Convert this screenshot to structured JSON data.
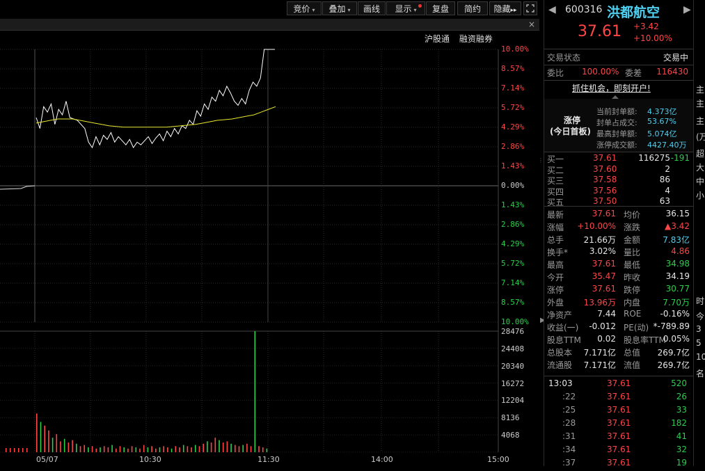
{
  "toolbar": {
    "buttons": [
      "竞价",
      "叠加",
      "画线",
      "显示",
      "复盘",
      "简约",
      "隐藏"
    ],
    "hide_arrows": "▸▸",
    "expand_icon": "expand-icon"
  },
  "subbar": {
    "close": "×"
  },
  "badges": [
    "沪股通",
    "融资融券"
  ],
  "chart_data": {
    "type": "line",
    "date_label": "05/07",
    "x_ticks": [
      "10:30",
      "11:30",
      "14:00",
      "15:00"
    ],
    "pct_ticks": [
      "10.00%",
      "8.57%",
      "7.14%",
      "5.72%",
      "4.29%",
      "2.86%",
      "1.43%",
      "0.00%",
      "1.43%",
      "2.86%",
      "4.29%",
      "5.72%",
      "7.14%",
      "8.57%",
      "10.00%"
    ],
    "volume_ticks": [
      "28476",
      "24408",
      "20340",
      "16272",
      "12204",
      "8136",
      "4068"
    ],
    "prev_close": 34.19,
    "series": [
      {
        "values": [
          5.0,
          4.2,
          5.8,
          5.4,
          6.0,
          4.5,
          5.6,
          5.2,
          6.2,
          5.0,
          4.9,
          4.8,
          4.5,
          4.2,
          3.2,
          2.8,
          3.6,
          3.0,
          3.7,
          3.4,
          3.9,
          3.2,
          3.6,
          3.3,
          3.0,
          3.4,
          2.8,
          3.2,
          3.0,
          3.3,
          3.6,
          3.1,
          3.5,
          3.8,
          3.3,
          4.0,
          3.6,
          4.2,
          3.8,
          4.4,
          4.2,
          4.8,
          4.5,
          5.5,
          5.1,
          6.0,
          5.6,
          6.5,
          6.2,
          7.0,
          6.6,
          7.3,
          6.8,
          6.2,
          5.9,
          6.4,
          6.0,
          7.0,
          7.6,
          7.3,
          7.9,
          10.0,
          10.0
        ]
      },
      {
        "values": [
          4.6,
          4.7,
          4.8,
          4.9,
          4.9,
          4.9,
          4.8,
          4.7,
          4.6,
          4.5,
          4.4,
          4.35,
          4.3,
          4.3,
          4.3,
          4.3,
          4.3,
          4.3,
          4.3,
          4.35,
          4.4,
          4.45,
          4.5,
          4.6,
          4.7,
          4.8,
          4.85,
          4.9,
          5.0,
          5.1,
          5.2,
          5.4,
          5.6,
          5.8
        ]
      }
    ],
    "volumes": [
      0.32,
      0.25,
      0.22,
      0.18,
      0.12,
      0.15,
      0.09,
      0.11,
      0.08,
      0.1,
      0.07,
      0.05,
      0.06,
      0.04,
      0.05,
      0.03,
      0.04,
      0.05,
      0.04,
      0.06,
      0.03,
      0.05,
      0.04,
      0.03,
      0.05,
      0.04,
      0.03,
      0.06,
      0.04,
      0.05,
      0.03,
      0.04,
      0.05,
      0.04,
      0.03,
      0.05,
      0.04,
      0.06,
      0.05,
      0.04,
      0.06,
      0.05,
      0.07,
      0.09,
      0.08,
      0.12,
      0.1,
      0.08,
      0.09,
      0.07,
      0.06,
      0.05,
      0.06,
      0.07,
      0.05,
      1.0,
      0.05,
      0.04,
      0.03
    ]
  },
  "stock": {
    "code": "600316",
    "name": "洪都航空",
    "price": "37.61",
    "change": "+3.42",
    "pct": "+10.00%"
  },
  "status": {
    "label": "交易状态",
    "value": "交易中"
  },
  "weibi": {
    "l1": "委比",
    "v1": "100.00%",
    "l2": "委差",
    "v2": "116430"
  },
  "promo": "抓住机会，即刻开户!",
  "limit": {
    "title1": "涨停",
    "title2": "(今日首板)",
    "rows": [
      [
        "当前封单额:",
        "4.373亿"
      ],
      [
        "封单占成交:",
        "53.67%"
      ],
      [
        "最高封单额:",
        "5.074亿"
      ],
      [
        "涨停成交额:",
        "4427.40万"
      ]
    ]
  },
  "book": [
    [
      "买一",
      "37.61",
      "116275",
      "-191"
    ],
    [
      "买二",
      "37.60",
      "2",
      ""
    ],
    [
      "买三",
      "37.58",
      "86",
      ""
    ],
    [
      "买四",
      "37.56",
      "4",
      ""
    ],
    [
      "买五",
      "37.50",
      "63",
      ""
    ]
  ],
  "stats": [
    [
      "最新",
      "37.61",
      "均价",
      "36.15"
    ],
    [
      "涨幅",
      "+10.00%",
      "涨跌",
      "▲3.42"
    ],
    [
      "总手",
      "21.66万",
      "金额",
      "7.83亿"
    ],
    [
      "换手*",
      "3.02%",
      "量比",
      "4.86"
    ],
    [
      "最高",
      "37.61",
      "最低",
      "34.98"
    ],
    [
      "今开",
      "35.47",
      "昨收",
      "34.19"
    ],
    [
      "涨停",
      "37.61",
      "跌停",
      "30.77"
    ],
    [
      "外盘",
      "13.96万",
      "内盘",
      "7.70万"
    ],
    [
      "净资产",
      "7.44",
      "ROE",
      "-0.16%"
    ],
    [
      "收益(一)",
      "-0.012",
      "PE(动)",
      "*-789.89"
    ],
    [
      "股息TTM",
      "0.02",
      "股息率TTM",
      "0.05%"
    ],
    [
      "总股本",
      "7.171亿",
      "总值",
      "269.7亿"
    ],
    [
      "流通股",
      "7.171亿",
      "流值",
      "269.7亿"
    ]
  ],
  "ticks": [
    [
      "13:03",
      "37.61",
      "520"
    ],
    [
      ":22",
      "37.61",
      "26"
    ],
    [
      ":25",
      "37.61",
      "33"
    ],
    [
      ":28",
      "37.61",
      "182"
    ],
    [
      ":31",
      "37.61",
      "41"
    ],
    [
      ":34",
      "37.61",
      "32"
    ],
    [
      ":37",
      "37.61",
      "19"
    ]
  ],
  "farright": [
    "主",
    "主",
    "主",
    "(万",
    "超",
    "大",
    "中",
    "小",
    "时",
    "今",
    "3",
    "5",
    "10",
    "名"
  ],
  "nav": {
    "prev": "◀",
    "next": "▶"
  },
  "colors": {
    "up": "#ff4646",
    "down": "#29d14a",
    "price_line": "#ffffff",
    "avg_line": "#e8e830"
  }
}
